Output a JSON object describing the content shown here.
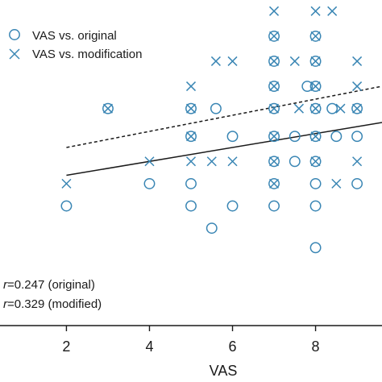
{
  "chart_data": {
    "type": "scatter",
    "title": "",
    "xlabel": "VAS",
    "ylabel": "",
    "xlim": [
      0.4,
      9.6
    ],
    "ylim": [
      -1.5,
      10.2
    ],
    "xticks": [
      2,
      4,
      6,
      8
    ],
    "xtick_labels": [
      "2",
      "4",
      "6",
      "8"
    ],
    "grid": false,
    "legend_position": "top-left",
    "marker_color": "#3a86b4",
    "series": [
      {
        "name": "VAS vs. original",
        "marker": "circle",
        "points": [
          [
            2,
            2.8
          ],
          [
            3,
            6.3
          ],
          [
            4,
            3.6
          ],
          [
            5,
            6.3
          ],
          [
            5,
            5.3
          ],
          [
            5,
            3.6
          ],
          [
            5,
            2.8
          ],
          [
            5.6,
            6.3
          ],
          [
            5.5,
            2.0
          ],
          [
            6,
            5.3
          ],
          [
            6,
            2.8
          ],
          [
            7,
            8.9
          ],
          [
            7,
            8.0
          ],
          [
            7,
            7.1
          ],
          [
            7,
            6.3
          ],
          [
            7,
            5.3
          ],
          [
            7,
            4.4
          ],
          [
            7,
            3.6
          ],
          [
            7,
            2.8
          ],
          [
            7.5,
            5.3
          ],
          [
            7.5,
            4.4
          ],
          [
            7.8,
            7.1
          ],
          [
            8,
            8.9
          ],
          [
            8,
            8.0
          ],
          [
            8,
            7.1
          ],
          [
            8,
            6.3
          ],
          [
            8,
            5.3
          ],
          [
            8,
            4.4
          ],
          [
            8,
            3.6
          ],
          [
            8,
            2.8
          ],
          [
            8,
            1.3
          ],
          [
            8.4,
            6.3
          ],
          [
            8.5,
            5.3
          ],
          [
            9,
            6.3
          ],
          [
            9,
            5.3
          ],
          [
            9,
            3.6
          ]
        ]
      },
      {
        "name": "VAS vs. modification",
        "marker": "x",
        "points": [
          [
            2,
            3.6
          ],
          [
            3,
            6.3
          ],
          [
            4,
            4.4
          ],
          [
            5,
            7.1
          ],
          [
            5,
            6.3
          ],
          [
            5,
            5.3
          ],
          [
            5,
            4.4
          ],
          [
            5.6,
            8.0
          ],
          [
            6,
            8.0
          ],
          [
            5.5,
            4.4
          ],
          [
            6,
            4.4
          ],
          [
            7,
            9.8
          ],
          [
            7,
            8.9
          ],
          [
            7,
            8.0
          ],
          [
            7,
            7.1
          ],
          [
            7,
            6.3
          ],
          [
            7,
            5.3
          ],
          [
            7,
            4.4
          ],
          [
            7,
            3.6
          ],
          [
            7.5,
            8.0
          ],
          [
            7.6,
            6.3
          ],
          [
            8,
            9.8
          ],
          [
            8.4,
            9.8
          ],
          [
            8,
            8.9
          ],
          [
            8,
            8.0
          ],
          [
            8,
            7.1
          ],
          [
            8,
            6.3
          ],
          [
            8,
            5.3
          ],
          [
            8,
            4.4
          ],
          [
            8.5,
            3.6
          ],
          [
            8.6,
            6.3
          ],
          [
            9,
            8.0
          ],
          [
            9,
            7.1
          ],
          [
            9,
            6.3
          ],
          [
            9,
            4.4
          ]
        ]
      }
    ],
    "lines": [
      {
        "name": "modified fit",
        "style": "dashed",
        "from": [
          2,
          4.9
        ],
        "to": [
          9.6,
          7.1
        ]
      },
      {
        "name": "original fit",
        "style": "solid",
        "from": [
          2,
          3.9
        ],
        "to": [
          9.6,
          5.8
        ]
      }
    ],
    "annotations": [
      {
        "var": "r",
        "text": "=0.247 (original)"
      },
      {
        "var": "r",
        "text": "=0.329 (modified)"
      }
    ]
  }
}
